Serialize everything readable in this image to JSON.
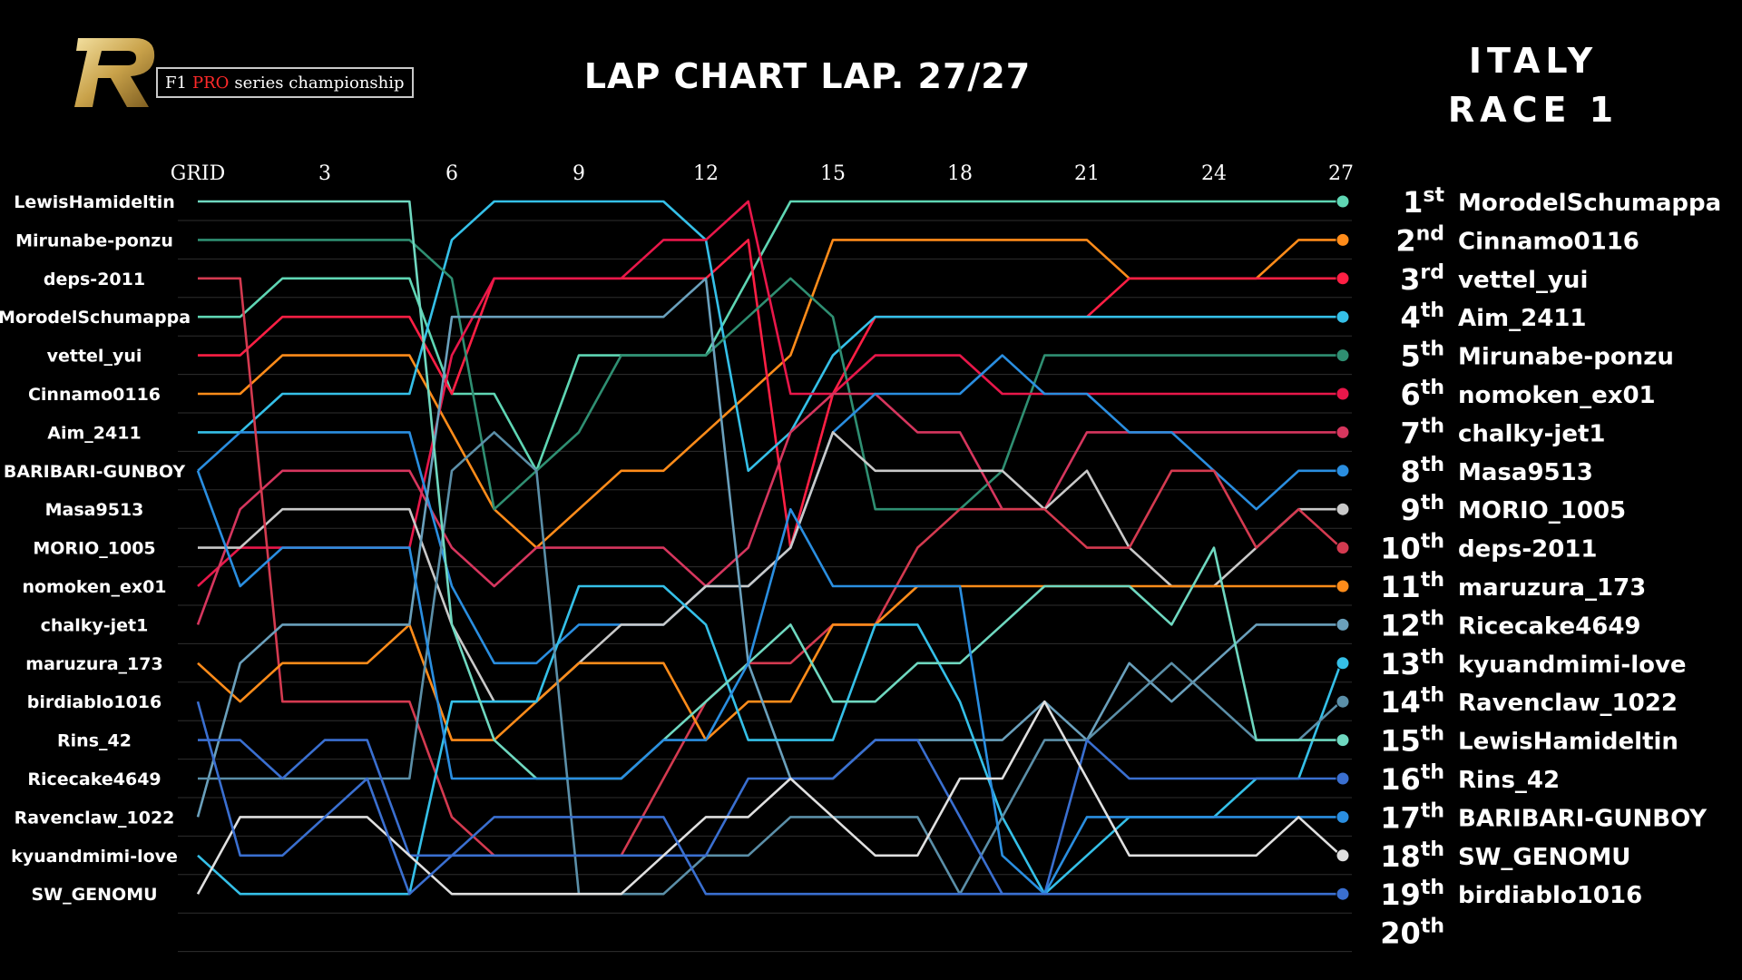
{
  "brand": {
    "logo_letter": "R",
    "series_prefix": "F1",
    "series_pro": "PRO",
    "series_suffix": "series championship"
  },
  "header": {
    "title": "LAP CHART  LAP. 27/27",
    "race_country": "ITALY",
    "race_name": "RACE 1"
  },
  "colors": {
    "background": "#000000",
    "gridline": "#2e2e2e",
    "logo_gold": "#c9a24a",
    "pro_red": "#ff2a2a"
  },
  "chart_data": {
    "type": "line",
    "title": "LAP CHART  LAP. 27/27",
    "x_tick_labels": [
      "GRID",
      "3",
      "6",
      "9",
      "12",
      "15",
      "18",
      "21",
      "24",
      "27"
    ],
    "x_tick_laps": [
      0,
      3,
      6,
      9,
      12,
      15,
      18,
      21,
      24,
      27
    ],
    "x_range": [
      0,
      27
    ],
    "y_range": [
      1,
      20
    ],
    "y_inverted": true,
    "grid": true,
    "grid_order_left": [
      "LewisHamideltin",
      "Mirunabe-ponzu",
      "deps-2011",
      "MorodelSchumappa",
      "vettel_yui",
      "Cinnamo0116",
      "Aim_2411",
      "BARIBARI-GUNBOY",
      "Masa9513",
      "MORIO_1005",
      "nomoken_ex01",
      "chalky-jet1",
      "maruzura_173",
      "birdiablo1016",
      "Rins_42",
      "Ricecake4649",
      "Ravenclaw_1022",
      "kyuandmimi-love",
      "SW_GENOMU"
    ],
    "position_labels": [
      {
        "n": "1",
        "suf": "st"
      },
      {
        "n": "2",
        "suf": "nd"
      },
      {
        "n": "3",
        "suf": "rd"
      },
      {
        "n": "4",
        "suf": "th"
      },
      {
        "n": "5",
        "suf": "th"
      },
      {
        "n": "6",
        "suf": "th"
      },
      {
        "n": "7",
        "suf": "th"
      },
      {
        "n": "8",
        "suf": "th"
      },
      {
        "n": "9",
        "suf": "th"
      },
      {
        "n": "10",
        "suf": "th"
      },
      {
        "n": "11",
        "suf": "th"
      },
      {
        "n": "12",
        "suf": "th"
      },
      {
        "n": "13",
        "suf": "th"
      },
      {
        "n": "14",
        "suf": "th"
      },
      {
        "n": "15",
        "suf": "th"
      },
      {
        "n": "16",
        "suf": "th"
      },
      {
        "n": "17",
        "suf": "th"
      },
      {
        "n": "18",
        "suf": "th"
      },
      {
        "n": "19",
        "suf": "th"
      },
      {
        "n": "20",
        "suf": "th"
      }
    ],
    "final_order": [
      "MorodelSchumappa",
      "Cinnamo0116",
      "vettel_yui",
      "Aim_2411",
      "Mirunabe-ponzu",
      "nomoken_ex01",
      "chalky-jet1",
      "Masa9513",
      "MORIO_1005",
      "deps-2011",
      "maruzura_173",
      "Ricecake4649",
      "kyuandmimi-love",
      "Ravenclaw_1022",
      "LewisHamideltin",
      "Rins_42",
      "BARIBARI-GUNBOY",
      "SW_GENOMU",
      "birdiablo1016"
    ],
    "final_order_display": [
      "MorodelSchumappa",
      "Cinnamo0116",
      "vettel_yui",
      "Aim_2411",
      "Mirunabe-ponzu",
      "nomoken_ex01",
      "chalky-jet1",
      "Masa9513",
      "MORIO_1005",
      "deps-2011",
      "maruzura_173",
      "Ricecake4649",
      "kyuandmimi-love",
      "Ravenclaw_1022",
      "LewisHamideltin",
      "Rins_42",
      "BARIBARI-GUNBOY",
      "SW_GENOMU",
      "birdiablo1016"
    ],
    "series": [
      {
        "name": "MorodelSchumappa",
        "color": "#5fd6b4",
        "positions": [
          4,
          4,
          3,
          3,
          3,
          3,
          6,
          6,
          8,
          5,
          5,
          5,
          5,
          3,
          1,
          1,
          1,
          1,
          1,
          1,
          1,
          1,
          1,
          1,
          1,
          1,
          1,
          1
        ]
      },
      {
        "name": "Cinnamo0116",
        "color": "#ff8c1a",
        "positions": [
          6,
          6,
          5,
          5,
          5,
          5,
          7,
          9,
          10,
          9,
          8,
          8,
          7,
          6,
          5,
          2,
          2,
          2,
          2,
          2,
          2,
          2,
          3,
          3,
          3,
          3,
          2,
          2
        ]
      },
      {
        "name": "vettel_yui",
        "color": "#ff1f44",
        "positions": [
          5,
          5,
          4,
          4,
          4,
          4,
          6,
          3,
          3,
          3,
          3,
          3,
          3,
          2,
          10,
          6,
          4,
          4,
          4,
          4,
          4,
          4,
          3,
          3,
          3,
          3,
          3,
          3
        ]
      },
      {
        "name": "Aim_2411",
        "color": "#35c0e8",
        "positions": [
          7,
          7,
          6,
          6,
          6,
          6,
          2,
          1,
          1,
          1,
          1,
          1,
          2,
          8,
          7,
          5,
          4,
          4,
          4,
          4,
          4,
          4,
          4,
          4,
          4,
          4,
          4,
          4
        ]
      },
      {
        "name": "Mirunabe-ponzu",
        "color": "#2f8f72",
        "positions": [
          2,
          2,
          2,
          2,
          2,
          2,
          3,
          9,
          8,
          7,
          5,
          5,
          5,
          4,
          3,
          4,
          9,
          9,
          9,
          8,
          5,
          5,
          5,
          5,
          5,
          5,
          5,
          5
        ]
      },
      {
        "name": "nomoken_ex01",
        "color": "#e8174a",
        "positions": [
          11,
          10,
          10,
          10,
          10,
          10,
          5,
          3,
          3,
          3,
          3,
          2,
          2,
          1,
          6,
          6,
          5,
          5,
          5,
          6,
          6,
          6,
          6,
          6,
          6,
          6,
          6,
          6
        ]
      },
      {
        "name": "chalky-jet1",
        "color": "#d6365e",
        "positions": [
          12,
          9,
          8,
          8,
          8,
          8,
          10,
          11,
          10,
          10,
          10,
          10,
          11,
          10,
          7,
          6,
          6,
          7,
          7,
          9,
          9,
          7,
          7,
          7,
          7,
          7,
          7,
          7
        ]
      },
      {
        "name": "Masa9513",
        "color": "#2a8ee0",
        "positions": [
          8,
          7,
          7,
          7,
          7,
          7,
          11,
          13,
          13,
          12,
          12,
          12,
          11,
          11,
          10,
          7,
          6,
          6,
          6,
          5,
          6,
          6,
          7,
          7,
          8,
          9,
          8,
          8
        ]
      },
      {
        "name": "MORIO_1005",
        "color": "#c9c9c9",
        "positions": [
          10,
          10,
          9,
          9,
          9,
          9,
          12,
          14,
          14,
          13,
          12,
          12,
          11,
          11,
          10,
          7,
          8,
          8,
          8,
          8,
          9,
          8,
          10,
          11,
          11,
          10,
          9,
          9
        ]
      },
      {
        "name": "deps-2011",
        "color": "#d43a50",
        "positions": [
          3,
          3,
          14,
          14,
          14,
          14,
          17,
          18,
          18,
          18,
          18,
          16,
          14,
          13,
          13,
          12,
          12,
          10,
          9,
          9,
          9,
          10,
          10,
          8,
          8,
          10,
          9,
          10
        ]
      },
      {
        "name": "maruzura_173",
        "color": "#ff8c1a",
        "positions": [
          13,
          14,
          13,
          13,
          13,
          12,
          15,
          15,
          14,
          13,
          13,
          13,
          15,
          14,
          14,
          12,
          12,
          11,
          11,
          11,
          11,
          11,
          11,
          11,
          11,
          11,
          11,
          11
        ]
      },
      {
        "name": "Ricecake4649",
        "color": "#6aa0bc",
        "positions": [
          17,
          13,
          12,
          12,
          12,
          12,
          4,
          4,
          4,
          4,
          4,
          4,
          3,
          13,
          16,
          16,
          15,
          15,
          15,
          15,
          14,
          15,
          13,
          14,
          13,
          12,
          12,
          12
        ]
      },
      {
        "name": "kyuandmimi-love",
        "color": "#35c0e8",
        "positions": [
          18,
          19,
          19,
          19,
          19,
          19,
          14,
          14,
          14,
          11,
          11,
          11,
          12,
          15,
          15,
          15,
          12,
          12,
          14,
          17,
          19,
          18,
          17,
          17,
          17,
          16,
          16,
          13
        ]
      },
      {
        "name": "Ravenclaw_1022",
        "color": "#5b8fa8",
        "positions": [
          16,
          16,
          16,
          16,
          16,
          16,
          8,
          7,
          8,
          19,
          19,
          19,
          18,
          18,
          17,
          17,
          17,
          17,
          19,
          17,
          15,
          15,
          14,
          13,
          14,
          15,
          15,
          14
        ]
      },
      {
        "name": "LewisHamideltin",
        "color": "#6fd8c0",
        "positions": [
          1,
          1,
          1,
          1,
          1,
          1,
          12,
          15,
          16,
          16,
          16,
          15,
          14,
          13,
          12,
          14,
          14,
          13,
          13,
          12,
          11,
          11,
          11,
          12,
          10,
          15,
          15,
          15
        ]
      },
      {
        "name": "Rins_42",
        "color": "#3a6fd0",
        "positions": [
          15,
          15,
          16,
          15,
          15,
          18,
          18,
          18,
          18,
          18,
          18,
          18,
          18,
          16,
          16,
          16,
          15,
          15,
          17,
          19,
          19,
          15,
          16,
          16,
          16,
          16,
          16,
          16
        ]
      },
      {
        "name": "BARIBARI-GUNBOY",
        "color": "#2a8ee0",
        "positions": [
          8,
          11,
          10,
          10,
          10,
          10,
          16,
          16,
          16,
          16,
          16,
          15,
          15,
          13,
          9,
          11,
          11,
          11,
          11,
          18,
          19,
          17,
          17,
          17,
          17,
          17,
          17,
          17
        ]
      },
      {
        "name": "SW_GENOMU",
        "color": "#e0e0e0",
        "positions": [
          19,
          17,
          17,
          17,
          17,
          18,
          19,
          19,
          19,
          19,
          19,
          18,
          17,
          17,
          16,
          17,
          18,
          18,
          16,
          16,
          14,
          16,
          18,
          18,
          18,
          18,
          17,
          18
        ]
      },
      {
        "name": "birdiablo1016",
        "color": "#3a6fd0",
        "positions": [
          14,
          18,
          18,
          17,
          16,
          19,
          18,
          17,
          17,
          17,
          17,
          17,
          19,
          19,
          19,
          19,
          19,
          19,
          19,
          19,
          19,
          19,
          19,
          19,
          19,
          19,
          19,
          19
        ]
      }
    ]
  }
}
